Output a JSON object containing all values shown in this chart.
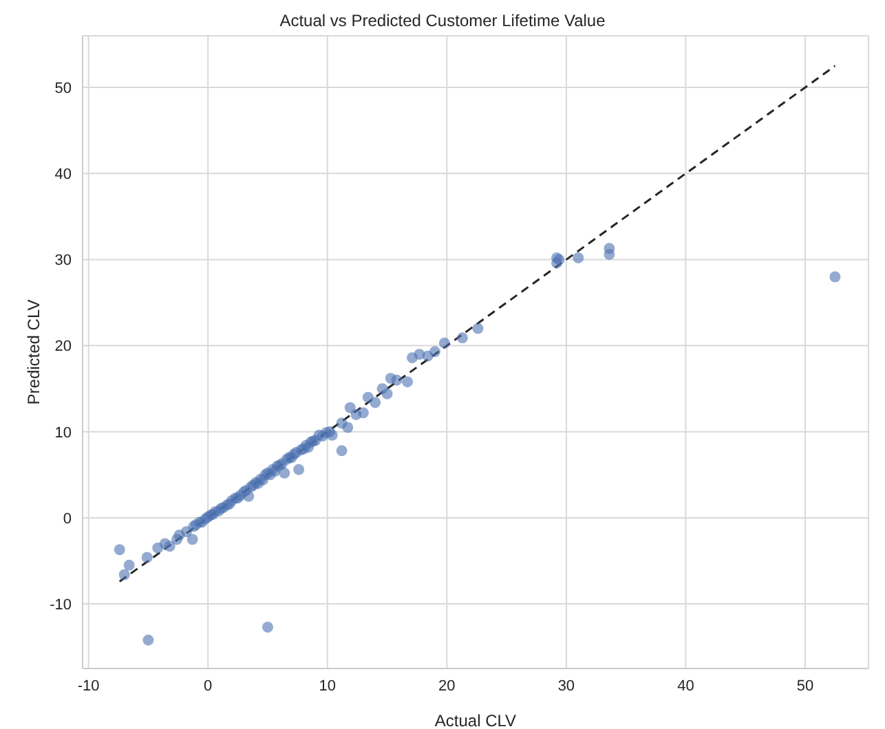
{
  "chart_data": {
    "type": "scatter",
    "title": "Actual vs Predicted Customer Lifetime Value",
    "xlabel": "Actual CLV",
    "ylabel": "Predicted CLV",
    "xlim": [
      -10.5,
      55.3
    ],
    "ylim": [
      -17.5,
      56
    ],
    "xticks": [
      -10,
      0,
      10,
      20,
      30,
      40,
      50
    ],
    "yticks": [
      -10,
      0,
      10,
      20,
      30,
      40,
      50
    ],
    "grid": true,
    "marker": "circle",
    "series": [
      {
        "color": "#4c72b0",
        "x": [
          -7.4,
          -7.0,
          -6.6,
          -5.1,
          -4.2,
          -3.6,
          -3.2,
          -2.6,
          -2.4,
          -1.8,
          -1.3,
          -1.2,
          -1.0,
          -0.7,
          -0.5,
          -0.2,
          0.0,
          0.2,
          0.4,
          0.6,
          0.9,
          1.1,
          1.3,
          1.6,
          1.8,
          2.0,
          2.3,
          2.5,
          2.7,
          3.0,
          3.2,
          3.4,
          3.6,
          3.8,
          4.0,
          4.2,
          4.4,
          4.6,
          4.8,
          5.0,
          5.2,
          5.4,
          5.6,
          5.8,
          6.0,
          6.2,
          6.4,
          6.6,
          6.8,
          7.0,
          7.2,
          7.4,
          7.6,
          7.8,
          8.0,
          8.2,
          8.4,
          8.6,
          8.8,
          9.0,
          9.3,
          9.6,
          9.9,
          10.2,
          10.4,
          11.2,
          11.2,
          11.7,
          11.9,
          12.4,
          13.0,
          13.4,
          14.0,
          14.6,
          15.0,
          15.3,
          15.8,
          16.7,
          17.1,
          17.7,
          18.4,
          19.0,
          19.8,
          21.3,
          22.6,
          29.2,
          29.2,
          29.4,
          31.0,
          33.6,
          33.6,
          52.5,
          5.0,
          -5.0
        ],
        "values": [
          -3.7,
          -6.6,
          -5.5,
          -4.6,
          -3.5,
          -3.0,
          -3.3,
          -2.5,
          -2.0,
          -1.6,
          -2.5,
          -1.0,
          -0.8,
          -0.5,
          -0.5,
          -0.1,
          0.1,
          0.3,
          0.4,
          0.7,
          0.8,
          1.1,
          1.2,
          1.5,
          1.6,
          2.0,
          2.3,
          2.3,
          2.6,
          3.0,
          3.2,
          2.5,
          3.6,
          3.8,
          4.1,
          4.0,
          4.5,
          4.4,
          5.0,
          5.2,
          5.0,
          5.6,
          5.4,
          6.0,
          6.1,
          6.3,
          5.2,
          6.8,
          7.0,
          7.0,
          7.4,
          7.6,
          5.6,
          7.9,
          8.0,
          8.4,
          8.2,
          8.8,
          8.9,
          9.0,
          9.6,
          9.5,
          9.9,
          10.0,
          9.6,
          11.0,
          7.8,
          10.5,
          12.8,
          12.0,
          12.2,
          14.0,
          13.4,
          15.0,
          14.4,
          16.2,
          16.0,
          15.8,
          18.6,
          19.0,
          18.8,
          19.3,
          20.3,
          20.9,
          22.0,
          30.2,
          29.6,
          30.0,
          30.2,
          31.3,
          30.6,
          28.0,
          -12.7,
          -14.2
        ]
      },
      {
        "type": "line",
        "color": "#262626",
        "line_style": "dashed",
        "marker": "none",
        "x": [
          -7.4,
          52.5
        ],
        "values": [
          -7.4,
          52.5
        ]
      }
    ]
  }
}
